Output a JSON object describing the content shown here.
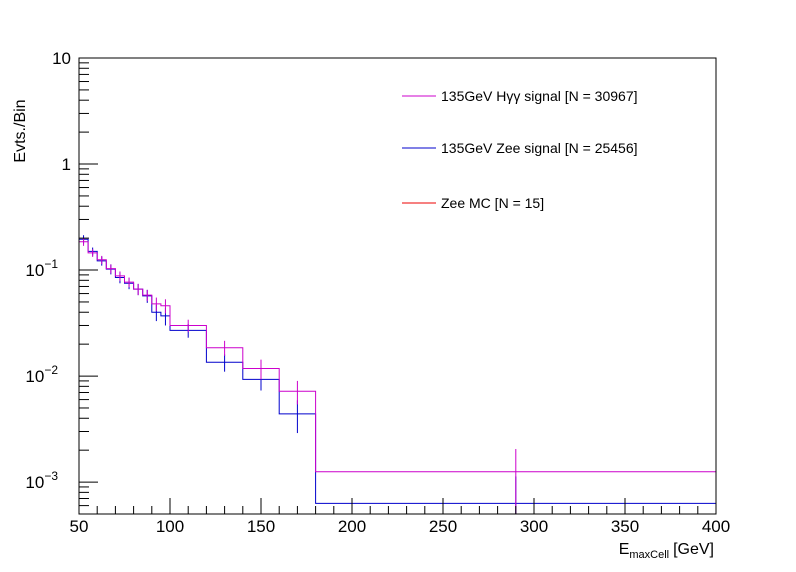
{
  "chart_data": {
    "type": "line",
    "plot_style": "step histogram with error bars",
    "y_scale": "log",
    "xlim": [
      50,
      400
    ],
    "ylim": [
      0.0005,
      10
    ],
    "ylabel": "Evts./Bin",
    "xlabel": {
      "base": "E",
      "subscript": "maxCell",
      "unit": "[GeV]"
    },
    "x_ticks": [
      {
        "value": 50,
        "label": "50"
      },
      {
        "value": 100,
        "label": "100"
      },
      {
        "value": 150,
        "label": "150"
      },
      {
        "value": 200,
        "label": "200"
      },
      {
        "value": 250,
        "label": "250"
      },
      {
        "value": 300,
        "label": "300"
      },
      {
        "value": 350,
        "label": "350"
      },
      {
        "value": 400,
        "label": "400"
      }
    ],
    "y_ticks": [
      {
        "value": 10,
        "label_base": "10",
        "label_exp": ""
      },
      {
        "value": 1,
        "label_base": "1",
        "label_exp": ""
      },
      {
        "value": 0.1,
        "label_base": "10",
        "label_exp": "−1"
      },
      {
        "value": 0.01,
        "label_base": "10",
        "label_exp": "−2"
      },
      {
        "value": 0.001,
        "label_base": "10",
        "label_exp": "−3"
      }
    ],
    "bin_edges": [
      50,
      55,
      60,
      65,
      70,
      75,
      80,
      85,
      90,
      95,
      100,
      120,
      140,
      160,
      180,
      400
    ],
    "series": [
      {
        "name": "135GeV Hγγ signal [N = 30967]",
        "color": "#cc00cc",
        "values": [
          0.185,
          0.145,
          0.125,
          0.103,
          0.088,
          0.077,
          0.066,
          0.058,
          0.048,
          0.046,
          0.03,
          0.0185,
          0.0118,
          0.0072,
          0.00125
        ],
        "errors": [
          0.016,
          0.012,
          0.011,
          0.01,
          0.009,
          0.008,
          0.008,
          0.007,
          0.007,
          0.007,
          0.004,
          0.003,
          0.0025,
          0.0018,
          0.0008
        ]
      },
      {
        "name": "135GeV Zee signal [N = 25456]",
        "color": "#0000cc",
        "values": [
          0.195,
          0.15,
          0.122,
          0.102,
          0.085,
          0.075,
          0.066,
          0.057,
          0.04,
          0.037,
          0.027,
          0.0135,
          0.0093,
          0.0044,
          0.00063
        ],
        "errors": [
          0.018,
          0.013,
          0.012,
          0.011,
          0.01,
          0.009,
          0.008,
          0.008,
          0.007,
          0.007,
          0.004,
          0.0025,
          0.002,
          0.0015,
          0.0005
        ]
      },
      {
        "name": "Zee MC [N = 15]",
        "color": "#ee0000",
        "values": [
          0,
          0,
          0,
          0,
          0,
          0,
          0,
          0,
          0,
          0,
          0,
          0,
          0,
          0,
          0
        ],
        "errors": [
          0,
          0,
          0,
          0,
          0,
          0,
          0,
          0,
          0,
          0,
          0,
          0,
          0,
          0,
          0
        ]
      }
    ],
    "legend": {
      "position": "top-right",
      "frame": false
    },
    "grid": false
  }
}
